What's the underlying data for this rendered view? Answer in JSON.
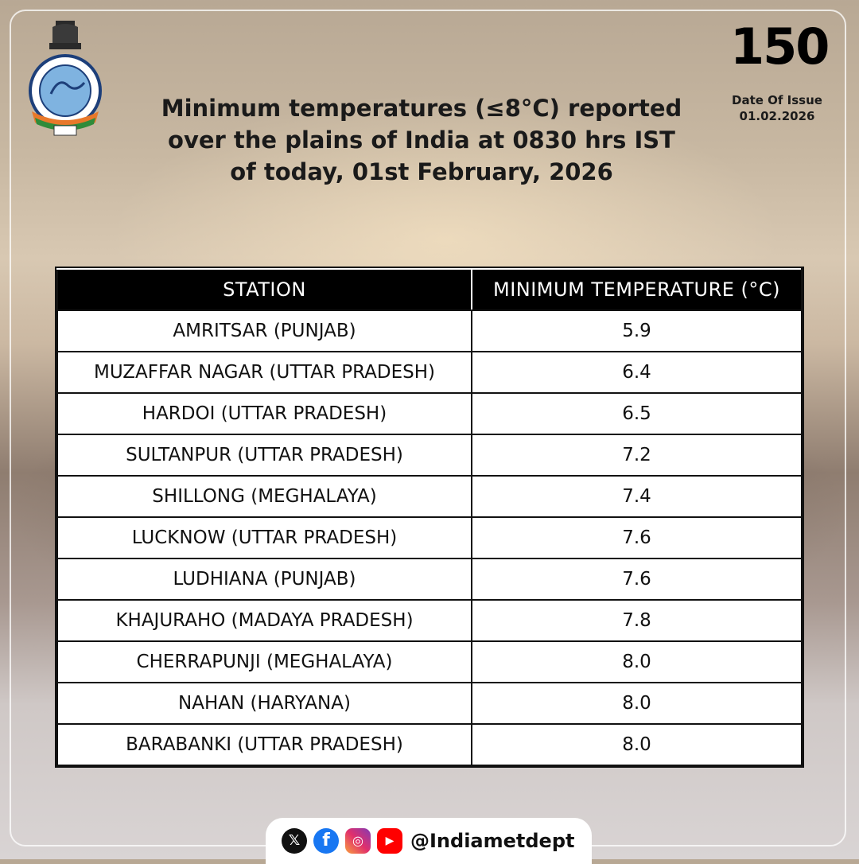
{
  "header": {
    "title_lines": [
      "Minimum temperatures (≤8°C)  reported",
      "over the plains of India at 0830 hrs IST",
      "of today, 01st February, 2026"
    ],
    "date_of_issue_label": "Date Of Issue",
    "date_of_issue_value": "01.02.2026",
    "anniversary_number": "150"
  },
  "table": {
    "columns": [
      "STATION",
      "MINIMUM TEMPERATURE (°C)"
    ],
    "rows": [
      {
        "station": "AMRITSAR (PUNJAB)",
        "temp": "5.9"
      },
      {
        "station": "MUZAFFAR NAGAR (UTTAR PRADESH)",
        "temp": "6.4"
      },
      {
        "station": "HARDOI (UTTAR PRADESH)",
        "temp": "6.5"
      },
      {
        "station": "SULTANPUR (UTTAR PRADESH)",
        "temp": "7.2"
      },
      {
        "station": "SHILLONG (MEGHALAYA)",
        "temp": "7.4"
      },
      {
        "station": "LUCKNOW (UTTAR PRADESH)",
        "temp": "7.6"
      },
      {
        "station": "LUDHIANA (PUNJAB)",
        "temp": "7.6"
      },
      {
        "station": "KHAJURAHO (MADAYA PRADESH)",
        "temp": "7.8"
      },
      {
        "station": "CHERRAPUNJI (MEGHALAYA)",
        "temp": "8.0"
      },
      {
        "station": "NAHAN (HARYANA)",
        "temp": "8.0"
      },
      {
        "station": "BARABANKI (UTTAR PRADESH)",
        "temp": "8.0"
      }
    ]
  },
  "social": {
    "handle": "@Indiametdept",
    "icons": [
      "x-icon",
      "facebook-icon",
      "instagram-icon",
      "youtube-icon"
    ]
  },
  "colors": {
    "header_bg": "#000000",
    "accent_orange": "#e8782a",
    "facebook_blue": "#1877f2",
    "youtube_red": "#ff0000"
  }
}
